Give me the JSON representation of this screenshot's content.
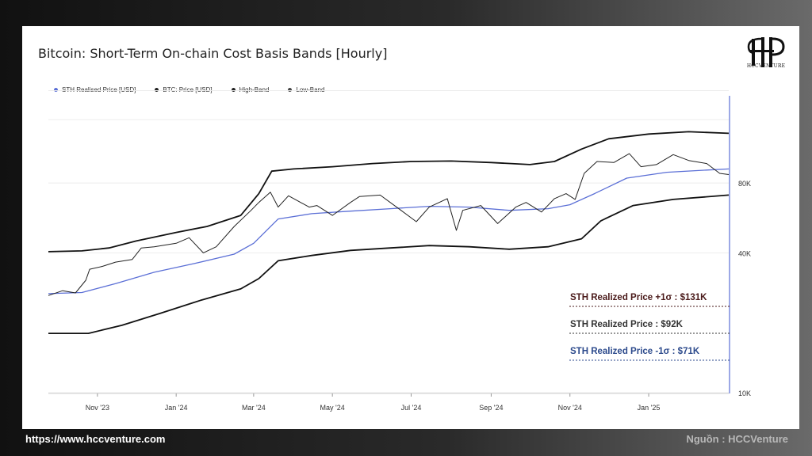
{
  "chart_data": {
    "type": "line",
    "title": "Bitcoin: Short-Term On-chain Cost Basis Bands [Hourly]",
    "y_scale": "log",
    "ylim": [
      10000,
      190000
    ],
    "y_ticks": [
      {
        "value": 80000,
        "label": "80K"
      },
      {
        "value": 40000,
        "label": "40K"
      },
      {
        "value": 10000,
        "label": "10K"
      }
    ],
    "x_ticks": [
      {
        "x": "2023-11-01",
        "label": "Nov '23"
      },
      {
        "x": "2024-01-01",
        "label": "Jan '24"
      },
      {
        "x": "2024-03-01",
        "label": "Mar '24"
      },
      {
        "x": "2024-05-01",
        "label": "May '24"
      },
      {
        "x": "2024-07-01",
        "label": "Jul '24"
      },
      {
        "x": "2024-09-01",
        "label": "Sep '24"
      },
      {
        "x": "2024-11-01",
        "label": "Nov '24"
      },
      {
        "x": "2025-01-01",
        "label": "Jan '25"
      }
    ],
    "xlim": [
      "2023-09-24",
      "2025-03-04"
    ],
    "legend": {
      "position": "top-left",
      "items": [
        {
          "label": "STH Realised Price [USD]",
          "color": "#5b6fd6"
        },
        {
          "label": "BTC: Price [USD]",
          "color": "#222222"
        },
        {
          "label": "High-Band",
          "color": "#222222"
        },
        {
          "label": "Low-Band",
          "color": "#555555"
        }
      ]
    },
    "series": [
      {
        "name": "High-Band",
        "color": "#111111",
        "points": [
          [
            "2023-09-24",
            40500
          ],
          [
            "2023-10-20",
            40800
          ],
          [
            "2023-11-10",
            42000
          ],
          [
            "2023-12-01",
            45000
          ],
          [
            "2024-01-01",
            49000
          ],
          [
            "2024-01-25",
            52000
          ],
          [
            "2024-02-20",
            58000
          ],
          [
            "2024-03-05",
            72000
          ],
          [
            "2024-03-15",
            90000
          ],
          [
            "2024-04-01",
            92000
          ],
          [
            "2024-05-01",
            94000
          ],
          [
            "2024-06-01",
            97000
          ],
          [
            "2024-07-01",
            99000
          ],
          [
            "2024-08-01",
            99500
          ],
          [
            "2024-09-01",
            98000
          ],
          [
            "2024-10-01",
            96000
          ],
          [
            "2024-10-20",
            99000
          ],
          [
            "2024-11-10",
            112000
          ],
          [
            "2024-12-01",
            124000
          ],
          [
            "2025-01-01",
            130000
          ],
          [
            "2025-02-01",
            133000
          ],
          [
            "2025-03-04",
            131000
          ]
        ]
      },
      {
        "name": "STH Realised Price [USD]",
        "color": "#5b6fd6",
        "points": [
          [
            "2023-09-24",
            26700
          ],
          [
            "2023-10-20",
            27000
          ],
          [
            "2023-11-15",
            29500
          ],
          [
            "2023-12-15",
            33000
          ],
          [
            "2024-01-15",
            36000
          ],
          [
            "2024-02-15",
            39500
          ],
          [
            "2024-03-01",
            44000
          ],
          [
            "2024-03-20",
            56000
          ],
          [
            "2024-04-15",
            59000
          ],
          [
            "2024-05-15",
            60500
          ],
          [
            "2024-06-15",
            62000
          ],
          [
            "2024-07-15",
            63500
          ],
          [
            "2024-08-15",
            63000
          ],
          [
            "2024-09-15",
            61000
          ],
          [
            "2024-10-15",
            62000
          ],
          [
            "2024-11-01",
            64500
          ],
          [
            "2024-11-20",
            72000
          ],
          [
            "2024-12-15",
            84000
          ],
          [
            "2025-01-15",
            89000
          ],
          [
            "2025-02-15",
            91000
          ],
          [
            "2025-03-04",
            92000
          ]
        ]
      },
      {
        "name": "Low-Band",
        "color": "#111111",
        "points": [
          [
            "2023-09-24",
            18000
          ],
          [
            "2023-10-25",
            18000
          ],
          [
            "2023-11-20",
            19500
          ],
          [
            "2023-12-20",
            22000
          ],
          [
            "2024-01-20",
            25000
          ],
          [
            "2024-02-20",
            28000
          ],
          [
            "2024-03-05",
            31000
          ],
          [
            "2024-03-20",
            37000
          ],
          [
            "2024-04-15",
            39000
          ],
          [
            "2024-05-15",
            41000
          ],
          [
            "2024-06-15",
            42000
          ],
          [
            "2024-07-15",
            43000
          ],
          [
            "2024-08-15",
            42500
          ],
          [
            "2024-09-15",
            41500
          ],
          [
            "2024-10-15",
            42500
          ],
          [
            "2024-11-10",
            46000
          ],
          [
            "2024-11-25",
            55000
          ],
          [
            "2024-12-20",
            64000
          ],
          [
            "2025-01-20",
            68000
          ],
          [
            "2025-03-04",
            71000
          ]
        ]
      },
      {
        "name": "BTC: Price [USD]",
        "color": "#222222",
        "points": [
          [
            "2023-09-24",
            26200
          ],
          [
            "2023-10-05",
            27500
          ],
          [
            "2023-10-15",
            26900
          ],
          [
            "2023-10-23",
            30500
          ],
          [
            "2023-10-26",
            34000
          ],
          [
            "2023-11-05",
            35000
          ],
          [
            "2023-11-15",
            36500
          ],
          [
            "2023-11-28",
            37500
          ],
          [
            "2023-12-05",
            42000
          ],
          [
            "2023-12-15",
            42500
          ],
          [
            "2024-01-01",
            44000
          ],
          [
            "2024-01-11",
            46500
          ],
          [
            "2024-01-22",
            40000
          ],
          [
            "2024-02-01",
            42500
          ],
          [
            "2024-02-15",
            52000
          ],
          [
            "2024-02-28",
            61000
          ],
          [
            "2024-03-05",
            66000
          ],
          [
            "2024-03-14",
            73000
          ],
          [
            "2024-03-20",
            63000
          ],
          [
            "2024-03-28",
            70500
          ],
          [
            "2024-04-13",
            63000
          ],
          [
            "2024-04-19",
            64000
          ],
          [
            "2024-05-01",
            58000
          ],
          [
            "2024-05-15",
            66000
          ],
          [
            "2024-05-22",
            70000
          ],
          [
            "2024-06-07",
            71000
          ],
          [
            "2024-06-24",
            60500
          ],
          [
            "2024-07-05",
            54500
          ],
          [
            "2024-07-15",
            63000
          ],
          [
            "2024-07-29",
            68500
          ],
          [
            "2024-08-05",
            50000
          ],
          [
            "2024-08-10",
            61000
          ],
          [
            "2024-08-24",
            64000
          ],
          [
            "2024-09-06",
            53500
          ],
          [
            "2024-09-20",
            63000
          ],
          [
            "2024-09-28",
            66000
          ],
          [
            "2024-10-10",
            60000
          ],
          [
            "2024-10-20",
            68500
          ],
          [
            "2024-10-29",
            72000
          ],
          [
            "2024-11-05",
            68000
          ],
          [
            "2024-11-12",
            88000
          ],
          [
            "2024-11-22",
            99000
          ],
          [
            "2024-12-05",
            98000
          ],
          [
            "2024-12-17",
            107000
          ],
          [
            "2024-12-26",
            94000
          ],
          [
            "2025-01-07",
            96000
          ],
          [
            "2025-01-20",
            106000
          ],
          [
            "2025-02-01",
            100000
          ],
          [
            "2025-02-15",
            97000
          ],
          [
            "2025-02-25",
            88000
          ],
          [
            "2025-03-04",
            87000
          ]
        ]
      }
    ],
    "annotations": [
      {
        "text": "STH Realized Price +1σ : $131K",
        "color": "#4a1a1a"
      },
      {
        "text": "STH Realized Price  : $92K",
        "color": "#333333"
      },
      {
        "text": "STH Realized Price -1σ : $71K",
        "color": "#2c4a8c"
      }
    ],
    "current_date_line": "2025-03-04"
  },
  "footer": {
    "url": "https://www.hccventure.com",
    "source": "Nguồn : HCCVenture"
  },
  "logo_text": "HCCVENTURE"
}
